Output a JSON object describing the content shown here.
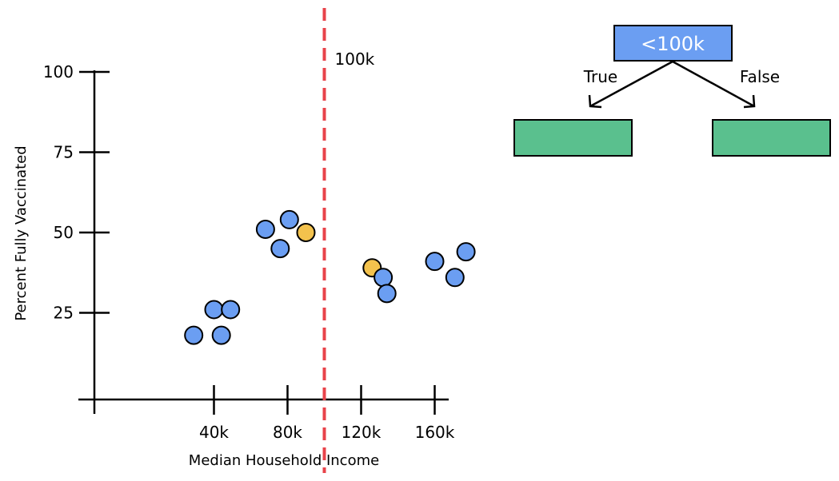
{
  "chart_data": {
    "type": "scatter",
    "xlabel": "Median Household Income",
    "ylabel": "Percent Fully Vaccinated",
    "xlim": [
      -25000,
      175000
    ],
    "ylim": [
      -2,
      100
    ],
    "x_ticks": [
      {
        "value": 40000,
        "label": "40k"
      },
      {
        "value": 80000,
        "label": "80k"
      },
      {
        "value": 120000,
        "label": "120k"
      },
      {
        "value": 160000,
        "label": "160k"
      }
    ],
    "y_ticks": [
      {
        "value": 25,
        "label": "25"
      },
      {
        "value": 50,
        "label": "50"
      },
      {
        "value": 75,
        "label": "75"
      },
      {
        "value": 100,
        "label": "100"
      }
    ],
    "points": [
      {
        "x": 29000,
        "y": 18,
        "class": "blue"
      },
      {
        "x": 40000,
        "y": 26,
        "class": "blue"
      },
      {
        "x": 44000,
        "y": 18,
        "class": "blue"
      },
      {
        "x": 49000,
        "y": 26,
        "class": "blue"
      },
      {
        "x": 68000,
        "y": 51,
        "class": "blue"
      },
      {
        "x": 76000,
        "y": 45,
        "class": "blue"
      },
      {
        "x": 81000,
        "y": 54,
        "class": "blue"
      },
      {
        "x": 90000,
        "y": 50,
        "class": "yellow"
      },
      {
        "x": 126000,
        "y": 39,
        "class": "yellow"
      },
      {
        "x": 132000,
        "y": 36,
        "class": "blue"
      },
      {
        "x": 134000,
        "y": 31,
        "class": "blue"
      },
      {
        "x": 160000,
        "y": 41,
        "class": "blue"
      },
      {
        "x": 171000,
        "y": 36,
        "class": "blue"
      },
      {
        "x": 177000,
        "y": 44,
        "class": "blue"
      }
    ],
    "split": {
      "x": 100000,
      "label": "100k"
    }
  },
  "tree": {
    "root_label": "<100k",
    "true_label": "True",
    "false_label": "False"
  },
  "colors": {
    "blue_point": "#6b9ef2",
    "yellow_point": "#f3c24d",
    "split_line": "#e8434a",
    "node_fill": "#6b9ef2",
    "node_text": "#ffffff",
    "leaf_fill": "#5ac08e"
  }
}
